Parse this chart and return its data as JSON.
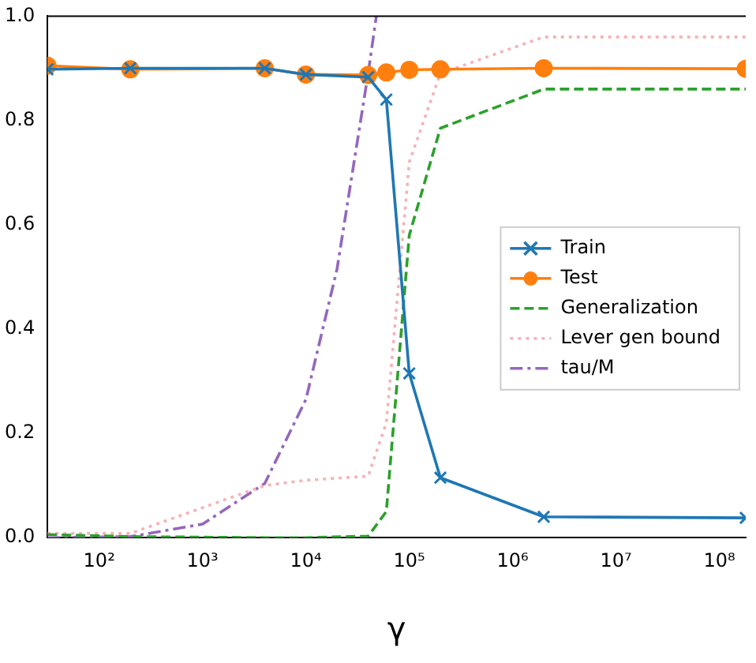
{
  "chart_data": {
    "type": "line",
    "xlabel": "γ",
    "log": "x",
    "legend": "right",
    "xlim": [
      31.6,
      180000000
    ],
    "xticks": [
      {
        "value": 100,
        "label": "10²"
      },
      {
        "value": 1000,
        "label": "10³"
      },
      {
        "value": 10000,
        "label": "10⁴"
      },
      {
        "value": 100000,
        "label": "10⁵"
      },
      {
        "value": 1000000,
        "label": "10⁶"
      },
      {
        "value": 10000000,
        "label": "10⁷"
      },
      {
        "value": 100000000,
        "label": "10⁸"
      }
    ],
    "ylim": [
      0,
      1
    ],
    "yticks": [
      {
        "value": 0,
        "label": "0.0"
      },
      {
        "value": 0.2,
        "label": "0.2"
      },
      {
        "value": 0.4,
        "label": "0.4"
      },
      {
        "value": 0.6,
        "label": "0.6"
      },
      {
        "value": 0.8,
        "label": "0.8"
      },
      {
        "value": 1,
        "label": "1.0"
      }
    ],
    "series": [
      {
        "name": "Train",
        "color": "#1f77b4",
        "marker": "cross",
        "line_style": "solid",
        "x": [
          31.6,
          200,
          4000,
          10000,
          40000,
          60000,
          100000,
          200000,
          2000000,
          180000000
        ],
        "values": [
          0.898,
          0.9,
          0.9,
          0.888,
          0.883,
          0.84,
          0.315,
          0.115,
          0.04,
          0.038
        ]
      },
      {
        "name": "Test",
        "color": "#ff7f0e",
        "marker": "circle",
        "line_style": "solid",
        "x": [
          31.6,
          200,
          4000,
          10000,
          40000,
          60000,
          100000,
          200000,
          2000000,
          180000000
        ],
        "values": [
          0.905,
          0.898,
          0.9,
          0.888,
          0.887,
          0.892,
          0.897,
          0.898,
          0.9,
          0.899
        ]
      },
      {
        "name": "Generalization",
        "color": "#2ca02c",
        "marker": "none",
        "line_style": "dashed",
        "x": [
          31.6,
          200,
          4000,
          10000,
          40000,
          60000,
          100000,
          200000,
          2000000,
          180000000
        ],
        "values": [
          0.006,
          0.002,
          0,
          0,
          0.003,
          0.05,
          0.58,
          0.785,
          0.86,
          0.86
        ]
      },
      {
        "name": "Lever gen bound",
        "color": "#f5b3b8",
        "marker": "none",
        "line_style": "dotted",
        "x": [
          31.6,
          200,
          4000,
          10000,
          40000,
          60000,
          100000,
          200000,
          2000000,
          180000000
        ],
        "values": [
          0.008,
          0.008,
          0.1,
          0.11,
          0.118,
          0.22,
          0.72,
          0.89,
          0.96,
          0.96
        ]
      },
      {
        "name": "tau/M",
        "color": "#9467bd",
        "marker": "none",
        "line_style": "dashdot",
        "x": [
          31.6,
          200,
          1000,
          4000,
          10000,
          20000,
          40000,
          48000
        ],
        "values": [
          0,
          0.002,
          0.026,
          0.104,
          0.265,
          0.515,
          0.89,
          1
        ]
      }
    ]
  }
}
